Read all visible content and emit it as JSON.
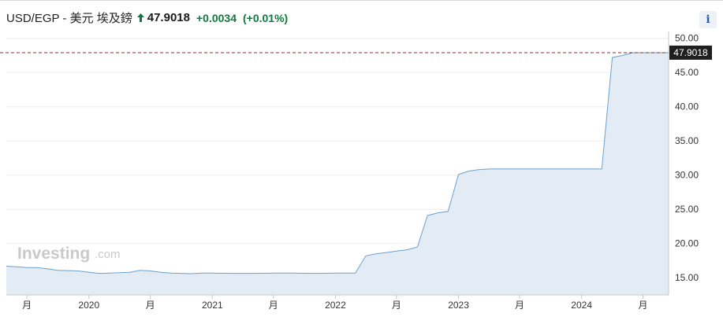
{
  "header": {
    "pair": "USD/EGP - 美元 埃及鎊",
    "price": "47.9018",
    "change": "+0.0034",
    "change_pct": "(+0.01%)",
    "info_label": "i"
  },
  "colors": {
    "line": "#6aa1cf",
    "area": "#e3ecf5",
    "price_tag_bg": "#1f1f1f",
    "current_line": "#8b2d2d",
    "positive": "#0e7a3a"
  },
  "watermark": {
    "main": "Investing",
    "sub": ".com"
  },
  "chart_data": {
    "type": "area",
    "title": "",
    "xlabel": "",
    "ylabel": "",
    "ylim": [
      12.5,
      51
    ],
    "y_ticks": [
      15,
      20,
      25,
      30,
      35,
      40,
      45,
      50
    ],
    "y_tick_labels": [
      "15.00",
      "20.00",
      "25.00",
      "30.00",
      "35.00",
      "40.00",
      "45.00",
      "50.00"
    ],
    "x_range": [
      "2019-05-01",
      "2024-09-15"
    ],
    "x_ticks": [
      {
        "date": "2019-07-01",
        "label": "月"
      },
      {
        "date": "2020-01-01",
        "label": "2020"
      },
      {
        "date": "2020-07-01",
        "label": "月"
      },
      {
        "date": "2021-01-01",
        "label": "2021"
      },
      {
        "date": "2021-07-01",
        "label": "月"
      },
      {
        "date": "2022-01-01",
        "label": "2022"
      },
      {
        "date": "2022-07-01",
        "label": "月"
      },
      {
        "date": "2023-01-01",
        "label": "2023"
      },
      {
        "date": "2023-07-01",
        "label": "月"
      },
      {
        "date": "2024-01-01",
        "label": "2024"
      },
      {
        "date": "2024-07-01",
        "label": "月"
      }
    ],
    "current_value": 47.9018,
    "current_label": "47.9018",
    "grid": "horizontal",
    "series": [
      {
        "x": [
          "2019-05-01",
          "2019-06-01",
          "2019-07-01",
          "2019-08-01",
          "2019-09-01",
          "2019-10-01",
          "2019-11-01",
          "2019-12-01",
          "2020-01-01",
          "2020-02-01",
          "2020-03-01",
          "2020-04-01",
          "2020-05-01",
          "2020-06-01",
          "2020-07-01",
          "2020-08-01",
          "2020-09-01",
          "2020-10-01",
          "2020-11-01",
          "2020-12-01",
          "2021-01-01",
          "2021-03-01",
          "2021-05-01",
          "2021-07-01",
          "2021-09-01",
          "2021-11-01",
          "2022-01-01",
          "2022-02-01",
          "2022-03-01",
          "2022-04-01",
          "2022-05-01",
          "2022-06-01",
          "2022-07-01",
          "2022-08-01",
          "2022-09-01",
          "2022-10-01",
          "2022-11-01",
          "2022-12-01",
          "2023-01-01",
          "2023-02-01",
          "2023-03-01",
          "2023-04-01",
          "2023-06-01",
          "2023-09-01",
          "2023-11-01",
          "2024-01-01",
          "2024-02-01",
          "2024-03-01",
          "2024-04-01",
          "2024-05-01",
          "2024-06-01",
          "2024-07-01",
          "2024-08-01",
          "2024-09-01",
          "2024-09-15"
        ],
        "values": [
          16.7,
          16.6,
          16.5,
          16.5,
          16.3,
          16.1,
          16.05,
          16.0,
          15.8,
          15.65,
          15.7,
          15.75,
          15.8,
          16.1,
          16.0,
          15.8,
          15.7,
          15.65,
          15.6,
          15.7,
          15.7,
          15.65,
          15.65,
          15.7,
          15.7,
          15.65,
          15.7,
          15.7,
          15.7,
          18.2,
          18.5,
          18.7,
          18.9,
          19.1,
          19.5,
          24.1,
          24.5,
          24.7,
          30.1,
          30.6,
          30.8,
          30.9,
          30.9,
          30.9,
          30.9,
          30.9,
          30.9,
          30.9,
          47.2,
          47.5,
          47.9018,
          47.9018,
          47.9018,
          47.9018,
          47.9018
        ]
      }
    ]
  }
}
